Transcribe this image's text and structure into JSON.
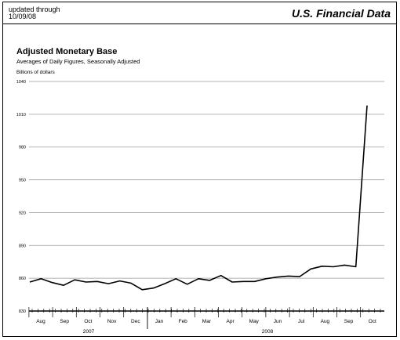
{
  "header": {
    "updated_label": "updated through",
    "updated_date": "10/09/08",
    "report_title": "U.S. Financial Data"
  },
  "chart_data": {
    "type": "line",
    "title": "Adjusted Monetary Base",
    "subtitle": "Averages of Daily Figures, Seasonally Adjusted",
    "ylabel": "Billions of dollars",
    "xlabel": "",
    "ylim": [
      830,
      1040
    ],
    "yticks": [
      830,
      860,
      890,
      920,
      950,
      980,
      1010,
      1040
    ],
    "grid": "horizontal",
    "months": [
      "Aug",
      "Sep",
      "Oct",
      "Nov",
      "Dec",
      "Jan",
      "Feb",
      "Mar",
      "Apr",
      "May",
      "Jun",
      "Jul",
      "Aug",
      "Sep",
      "Oct"
    ],
    "years": [
      "2007",
      "2008"
    ],
    "series": [
      {
        "values": [
          856.5,
          859.5,
          856.0,
          853.5,
          858.5,
          856.5,
          857.0,
          855.0,
          857.5,
          855.5,
          849.5,
          851.0,
          855.0,
          859.5,
          854.5,
          859.5,
          858.0,
          862.5,
          856.5,
          857.0,
          857.0,
          859.5,
          861.0,
          862.0,
          861.5,
          868.5,
          871.0,
          870.5,
          872.0,
          870.5,
          1018.0
        ]
      }
    ]
  }
}
